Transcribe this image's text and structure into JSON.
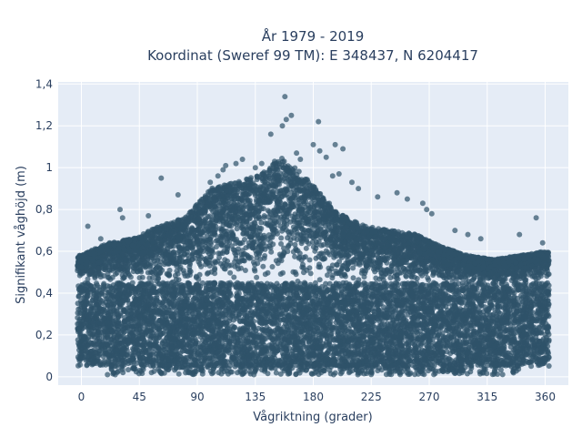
{
  "chart_data": {
    "type": "scatter",
    "title_line1": "År 1979 - 2019",
    "title_line2": "Koordinat (Sweref 99 TM): E 348437, N 6204417",
    "xlabel": "Vågriktning (grader)",
    "ylabel": "Signifikant våghöjd (m)",
    "xlim": [
      -18,
      378
    ],
    "ylim": [
      -0.04,
      1.41
    ],
    "x_ticks": [
      0,
      45,
      90,
      135,
      180,
      225,
      270,
      315,
      360
    ],
    "x_tick_labels": [
      "0",
      "45",
      "90",
      "135",
      "180",
      "225",
      "270",
      "315",
      "360"
    ],
    "y_ticks": [
      0,
      0.2,
      0.4,
      0.6,
      0.8,
      1,
      1.2,
      1.4
    ],
    "y_tick_labels": [
      "0",
      "0,2",
      "0,4",
      "0,6",
      "0,8",
      "1",
      "1,2",
      "1,4"
    ],
    "grid": true,
    "plot_background": "#e5ecf6",
    "marker_color": "#2f5269",
    "upper_envelope": [
      {
        "x": 0,
        "y": 0.58
      },
      {
        "x": 20,
        "y": 0.64
      },
      {
        "x": 40,
        "y": 0.66
      },
      {
        "x": 60,
        "y": 0.72
      },
      {
        "x": 80,
        "y": 0.76
      },
      {
        "x": 100,
        "y": 0.9
      },
      {
        "x": 120,
        "y": 0.93
      },
      {
        "x": 140,
        "y": 0.97
      },
      {
        "x": 155,
        "y": 1.05
      },
      {
        "x": 170,
        "y": 0.98
      },
      {
        "x": 185,
        "y": 0.88
      },
      {
        "x": 200,
        "y": 0.78
      },
      {
        "x": 220,
        "y": 0.72
      },
      {
        "x": 240,
        "y": 0.7
      },
      {
        "x": 260,
        "y": 0.68
      },
      {
        "x": 280,
        "y": 0.62
      },
      {
        "x": 300,
        "y": 0.58
      },
      {
        "x": 320,
        "y": 0.56
      },
      {
        "x": 340,
        "y": 0.58
      },
      {
        "x": 360,
        "y": 0.6
      }
    ],
    "outliers": [
      {
        "x": 158,
        "y": 1.34
      },
      {
        "x": 163,
        "y": 1.25
      },
      {
        "x": 159,
        "y": 1.23
      },
      {
        "x": 156,
        "y": 1.2
      },
      {
        "x": 147,
        "y": 1.16
      },
      {
        "x": 184,
        "y": 1.22
      },
      {
        "x": 197,
        "y": 1.11
      },
      {
        "x": 203,
        "y": 1.09
      },
      {
        "x": 180,
        "y": 1.11
      },
      {
        "x": 185,
        "y": 1.08
      },
      {
        "x": 190,
        "y": 1.05
      },
      {
        "x": 167,
        "y": 1.07
      },
      {
        "x": 170,
        "y": 1.04
      },
      {
        "x": 125,
        "y": 1.04
      },
      {
        "x": 120,
        "y": 1.02
      },
      {
        "x": 112,
        "y": 1.01
      },
      {
        "x": 110,
        "y": 0.99
      },
      {
        "x": 106,
        "y": 0.96
      },
      {
        "x": 100,
        "y": 0.93
      },
      {
        "x": 62,
        "y": 0.95
      },
      {
        "x": 75,
        "y": 0.87
      },
      {
        "x": 52,
        "y": 0.77
      },
      {
        "x": 30,
        "y": 0.8
      },
      {
        "x": 32,
        "y": 0.76
      },
      {
        "x": 5,
        "y": 0.72
      },
      {
        "x": 15,
        "y": 0.66
      },
      {
        "x": 210,
        "y": 0.93
      },
      {
        "x": 215,
        "y": 0.9
      },
      {
        "x": 230,
        "y": 0.86
      },
      {
        "x": 245,
        "y": 0.88
      },
      {
        "x": 253,
        "y": 0.85
      },
      {
        "x": 265,
        "y": 0.83
      },
      {
        "x": 268,
        "y": 0.8
      },
      {
        "x": 272,
        "y": 0.78
      },
      {
        "x": 290,
        "y": 0.7
      },
      {
        "x": 300,
        "y": 0.68
      },
      {
        "x": 310,
        "y": 0.66
      },
      {
        "x": 340,
        "y": 0.68
      },
      {
        "x": 353,
        "y": 0.76
      },
      {
        "x": 358,
        "y": 0.64
      },
      {
        "x": 200,
        "y": 0.97
      },
      {
        "x": 195,
        "y": 0.96
      },
      {
        "x": 140,
        "y": 1.02
      },
      {
        "x": 135,
        "y": 1.0
      },
      {
        "x": 150,
        "y": 1.03
      }
    ],
    "bulk_band": {
      "x_min": -3,
      "x_max": 363,
      "y_min": 0.05,
      "y_max": 0.45,
      "point_count": 7000
    }
  }
}
